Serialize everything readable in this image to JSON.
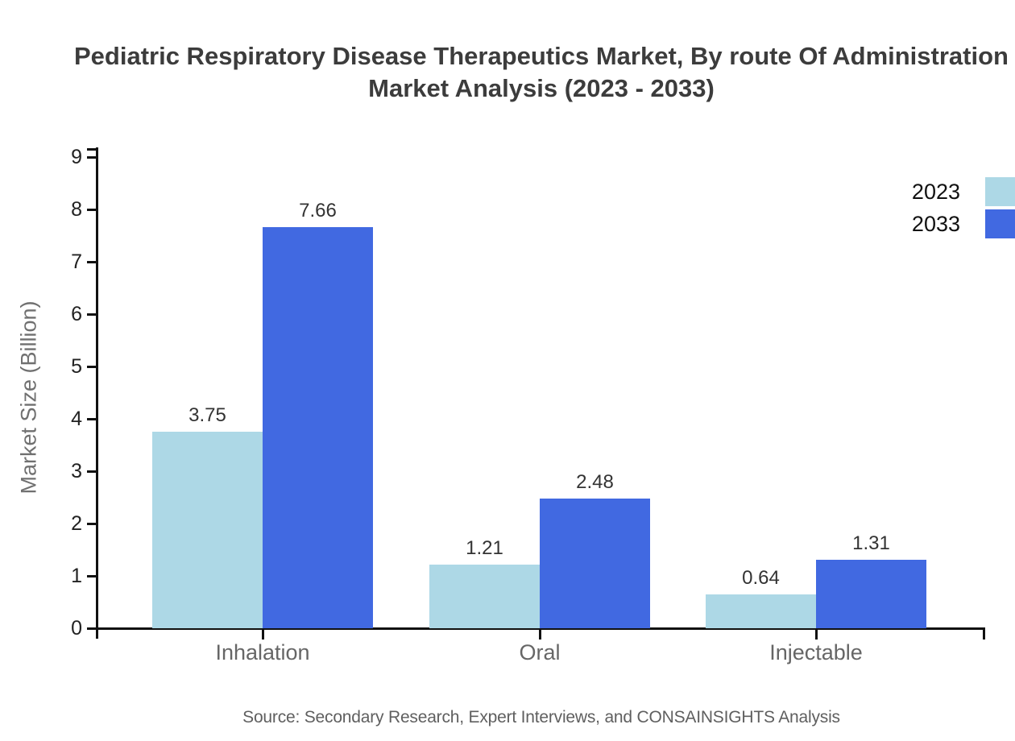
{
  "title": {
    "line1": "Pediatric Respiratory Disease Therapeutics Market, By route Of Administration",
    "line2": "Market Analysis (2023 - 2033)"
  },
  "source": "Source: Secondary Research, Expert Interviews, and CONSAINSIGHTS Analysis",
  "chart_data": {
    "type": "bar",
    "title": "Pediatric Respiratory Disease Therapeutics Market, By route Of Administration Market Analysis (2023 - 2033)",
    "categories": [
      "Inhalation",
      "Oral",
      "Injectable"
    ],
    "series": [
      {
        "name": "2023",
        "color": "#ADD8E6",
        "values": [
          3.75,
          1.21,
          0.64
        ]
      },
      {
        "name": "2033",
        "color": "#4169E1",
        "values": [
          7.66,
          2.48,
          1.31
        ]
      }
    ],
    "xlabel": "",
    "ylabel": "Market Size (Billion)",
    "ylim": [
      0,
      9
    ],
    "ytick_step": 1,
    "grid": false,
    "legend_position": "top-right",
    "value_labels": true,
    "axis_color": "#111111",
    "value_label_format": "2-decimals"
  }
}
